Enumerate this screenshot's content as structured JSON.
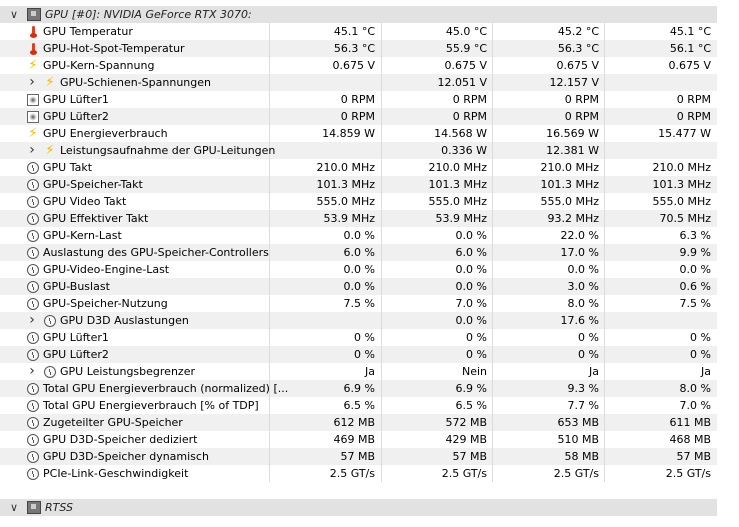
{
  "gpu_header": "GPU [#0]: NVIDIA GeForce RTX 3070:",
  "rows": [
    {
      "icon": "thermometer-icon",
      "iconcls": "ico-therm",
      "label": "GPU Temperatur",
      "v": [
        "45.1 °C",
        "45.0 °C",
        "45.2 °C",
        "45.1 °C"
      ]
    },
    {
      "icon": "thermometer-icon",
      "iconcls": "ico-therm",
      "label": "GPU-Hot-Spot-Temperatur",
      "v": [
        "56.3 °C",
        "55.9 °C",
        "56.3 °C",
        "56.1 °C"
      ]
    },
    {
      "icon": "bolt-icon",
      "iconcls": "ico-bolt",
      "label": "GPU-Kern-Spannung",
      "v": [
        "0.675 V",
        "0.675 V",
        "0.675 V",
        "0.675 V"
      ]
    },
    {
      "icon": "bolt-icon",
      "iconcls": "ico-bolt",
      "label": "GPU-Schienen-Spannungen",
      "expand": true,
      "v": [
        "",
        "12.051 V",
        "12.157 V",
        ""
      ]
    },
    {
      "icon": "fan-icon",
      "iconcls": "ico-fan",
      "label": "GPU Lüfter1",
      "v": [
        "0 RPM",
        "0 RPM",
        "0 RPM",
        "0 RPM"
      ]
    },
    {
      "icon": "fan-icon",
      "iconcls": "ico-fan",
      "label": "GPU Lüfter2",
      "v": [
        "0 RPM",
        "0 RPM",
        "0 RPM",
        "0 RPM"
      ]
    },
    {
      "icon": "bolt-icon",
      "iconcls": "ico-bolt",
      "label": "GPU Energieverbrauch",
      "v": [
        "14.859 W",
        "14.568 W",
        "16.569 W",
        "15.477 W"
      ]
    },
    {
      "icon": "bolt-icon",
      "iconcls": "ico-bolt",
      "label": "Leistungsaufnahme der GPU-Leitungen",
      "expand": true,
      "v": [
        "",
        "0.336 W",
        "12.381 W",
        ""
      ]
    },
    {
      "icon": "clock-icon",
      "iconcls": "ico-clock",
      "label": "GPU Takt",
      "v": [
        "210.0 MHz",
        "210.0 MHz",
        "210.0 MHz",
        "210.0 MHz"
      ]
    },
    {
      "icon": "clock-icon",
      "iconcls": "ico-clock",
      "label": "GPU-Speicher-Takt",
      "v": [
        "101.3 MHz",
        "101.3 MHz",
        "101.3 MHz",
        "101.3 MHz"
      ]
    },
    {
      "icon": "clock-icon",
      "iconcls": "ico-clock",
      "label": "GPU Video Takt",
      "v": [
        "555.0 MHz",
        "555.0 MHz",
        "555.0 MHz",
        "555.0 MHz"
      ]
    },
    {
      "icon": "clock-icon",
      "iconcls": "ico-clock",
      "label": "GPU Effektiver Takt",
      "v": [
        "53.9 MHz",
        "53.9 MHz",
        "93.2 MHz",
        "70.5 MHz"
      ]
    },
    {
      "icon": "clock-icon",
      "iconcls": "ico-clock",
      "label": "GPU-Kern-Last",
      "v": [
        "0.0 %",
        "0.0 %",
        "22.0 %",
        "6.3 %"
      ]
    },
    {
      "icon": "clock-icon",
      "iconcls": "ico-clock",
      "label": "Auslastung des GPU-Speicher-Controllers",
      "v": [
        "6.0 %",
        "6.0 %",
        "17.0 %",
        "9.9 %"
      ]
    },
    {
      "icon": "clock-icon",
      "iconcls": "ico-clock",
      "label": "GPU-Video-Engine-Last",
      "v": [
        "0.0 %",
        "0.0 %",
        "0.0 %",
        "0.0 %"
      ]
    },
    {
      "icon": "clock-icon",
      "iconcls": "ico-clock",
      "label": "GPU-Buslast",
      "v": [
        "0.0 %",
        "0.0 %",
        "3.0 %",
        "0.6 %"
      ]
    },
    {
      "icon": "clock-icon",
      "iconcls": "ico-clock",
      "label": "GPU-Speicher-Nutzung",
      "v": [
        "7.5 %",
        "7.0 %",
        "8.0 %",
        "7.5 %"
      ]
    },
    {
      "icon": "clock-icon",
      "iconcls": "ico-clock",
      "label": "GPU D3D Auslastungen",
      "expand": true,
      "v": [
        "",
        "0.0 %",
        "17.6 %",
        ""
      ]
    },
    {
      "icon": "clock-icon",
      "iconcls": "ico-clock",
      "label": "GPU Lüfter1",
      "v": [
        "0 %",
        "0 %",
        "0 %",
        "0 %"
      ]
    },
    {
      "icon": "clock-icon",
      "iconcls": "ico-clock",
      "label": "GPU Lüfter2",
      "v": [
        "0 %",
        "0 %",
        "0 %",
        "0 %"
      ]
    },
    {
      "icon": "clock-icon",
      "iconcls": "ico-clock",
      "label": "GPU Leistungsbegrenzer",
      "expand": true,
      "v": [
        "Ja",
        "Nein",
        "Ja",
        "Ja"
      ]
    },
    {
      "icon": "clock-icon",
      "iconcls": "ico-clock",
      "label": "Total GPU Energieverbrauch (normalized) [...",
      "v": [
        "6.9 %",
        "6.9 %",
        "9.3 %",
        "8.0 %"
      ]
    },
    {
      "icon": "clock-icon",
      "iconcls": "ico-clock",
      "label": "Total GPU Energieverbrauch [% of TDP]",
      "v": [
        "6.5 %",
        "6.5 %",
        "7.7 %",
        "7.0 %"
      ]
    },
    {
      "icon": "clock-icon",
      "iconcls": "ico-clock",
      "label": "Zugeteilter GPU-Speicher",
      "v": [
        "612 MB",
        "572 MB",
        "653 MB",
        "611 MB"
      ]
    },
    {
      "icon": "clock-icon",
      "iconcls": "ico-clock",
      "label": "GPU D3D-Speicher dediziert",
      "v": [
        "469 MB",
        "429 MB",
        "510 MB",
        "468 MB"
      ]
    },
    {
      "icon": "clock-icon",
      "iconcls": "ico-clock",
      "label": "GPU D3D-Speicher dynamisch",
      "v": [
        "57 MB",
        "57 MB",
        "58 MB",
        "57 MB"
      ]
    },
    {
      "icon": "clock-icon",
      "iconcls": "ico-clock",
      "label": "PCIe-Link-Geschwindigkeit",
      "v": [
        "2.5 GT/s",
        "2.5 GT/s",
        "2.5 GT/s",
        "2.5 GT/s"
      ]
    }
  ],
  "rtss_header": "RTSS"
}
